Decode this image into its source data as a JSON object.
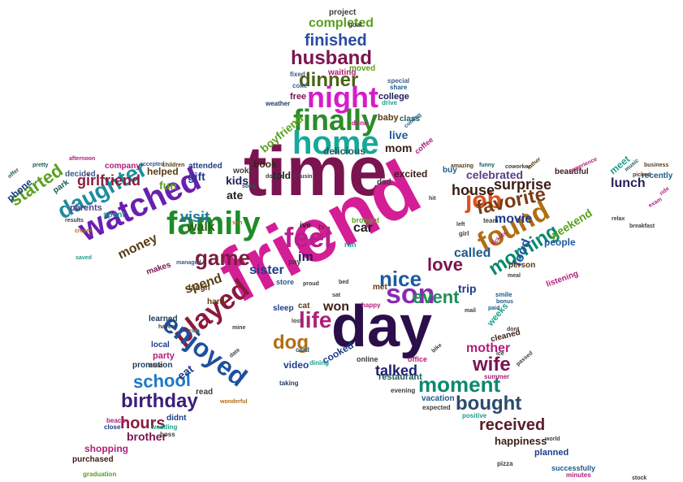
{
  "words": [
    {
      "text": "time",
      "color": "#7a1450"
    },
    {
      "text": "friend",
      "color": "#d41e96"
    },
    {
      "text": "day",
      "color": "#2b0f4a"
    },
    {
      "text": "family",
      "color": "#1e8c28"
    },
    {
      "text": "watched",
      "color": "#6a1fb0"
    },
    {
      "text": "home",
      "color": "#17a89a"
    },
    {
      "text": "finally",
      "color": "#2a8c28"
    },
    {
      "text": "night",
      "color": "#d41ec8"
    },
    {
      "text": "feel",
      "color": "#b81e8c"
    },
    {
      "text": "found",
      "color": "#b06e14"
    },
    {
      "text": "played",
      "color": "#8a1a3c"
    },
    {
      "text": "enjoyed",
      "color": "#1e50a0"
    },
    {
      "text": "son",
      "color": "#8a2ab0"
    },
    {
      "text": "job",
      "color": "#e0501e"
    },
    {
      "text": "daughter",
      "color": "#1e8ca0"
    },
    {
      "text": "game",
      "color": "#7a1e3c"
    },
    {
      "text": "dinner",
      "color": "#4a6414"
    },
    {
      "text": "husband",
      "color": "#7a1450"
    },
    {
      "text": "moment",
      "color": "#0a8a6e"
    },
    {
      "text": "nice",
      "color": "#1e5aa0"
    },
    {
      "text": "favorite",
      "color": "#7a3c14"
    },
    {
      "text": "morning",
      "color": "#0a8a6e"
    },
    {
      "text": "wife",
      "color": "#7a1450"
    },
    {
      "text": "bought",
      "color": "#2a4a6e"
    },
    {
      "text": "birthday",
      "color": "#3c1e78"
    },
    {
      "text": "life",
      "color": "#b01e78"
    },
    {
      "text": "dog",
      "color": "#b06e14"
    },
    {
      "text": "love",
      "color": "#7a1450"
    },
    {
      "text": "event",
      "color": "#1e8c5a"
    },
    {
      "text": "school",
      "color": "#1e78c8"
    },
    {
      "text": "received",
      "color": "#5a1e28"
    },
    {
      "text": "hours",
      "color": "#8a1e3c"
    },
    {
      "text": "started",
      "color": "#5aa01e"
    },
    {
      "text": "girlfriend",
      "color": "#8a1e3c"
    },
    {
      "text": "finished",
      "color": "#2a4aa0"
    },
    {
      "text": "completed",
      "color": "#5aa01e"
    },
    {
      "text": "visit",
      "color": "#1e78a0"
    },
    {
      "text": "walk",
      "color": "#2a6414"
    },
    {
      "text": "house",
      "color": "#3c1e14"
    },
    {
      "text": "called",
      "color": "#1e5a8a"
    },
    {
      "text": "movie",
      "color": "#1e3c8a"
    },
    {
      "text": "surprise",
      "color": "#3c1e14"
    },
    {
      "text": "lunch",
      "color": "#2a1e5a"
    },
    {
      "text": "talked",
      "color": "#1e1e6e"
    },
    {
      "text": "mother",
      "color": "#b01e78"
    },
    {
      "text": "sister",
      "color": "#1e3c8a"
    },
    {
      "text": "weekend",
      "color": "#5aa01e"
    },
    {
      "text": "celebrated",
      "color": "#5a3c8a"
    },
    {
      "text": "money",
      "color": "#5a3c14"
    },
    {
      "text": "food",
      "color": "#1e50a0"
    },
    {
      "text": "brother",
      "color": "#7a1450"
    },
    {
      "text": "happiness",
      "color": "#3c1e14"
    },
    {
      "text": "car",
      "color": "#1e1e1e"
    },
    {
      "text": "im",
      "color": "#1e1e5a"
    },
    {
      "text": "won",
      "color": "#3c1e14"
    },
    {
      "text": "trip",
      "color": "#1e3c8a"
    },
    {
      "text": "eat",
      "color": "#1e3c8a"
    },
    {
      "text": "fun",
      "color": "#5aa01e"
    },
    {
      "text": "gift",
      "color": "#1e3c8a"
    },
    {
      "text": "kids",
      "color": "#1e1e5a"
    },
    {
      "text": "ate",
      "color": "#1e1e1e"
    },
    {
      "text": "spend",
      "color": "#5a3c14"
    },
    {
      "text": "shopping",
      "color": "#b01e78"
    },
    {
      "text": "mom",
      "color": "#3c1e14"
    },
    {
      "text": "live",
      "color": "#1e5aa0"
    },
    {
      "text": "boyfriend",
      "color": "#5aa01e"
    },
    {
      "text": "book",
      "color": "#3c1e14"
    },
    {
      "text": "told",
      "color": "#1e1e1e"
    },
    {
      "text": "delicious",
      "color": "#1e5a5a"
    },
    {
      "text": "excited",
      "color": "#3c1e14"
    },
    {
      "text": "meet",
      "color": "#1ea08c"
    },
    {
      "text": "recently",
      "color": "#1e5a8a"
    },
    {
      "text": "beautiful",
      "color": "#3c1e14"
    },
    {
      "text": "people",
      "color": "#1e5aa0"
    },
    {
      "text": "party",
      "color": "#b01e78"
    },
    {
      "text": "video",
      "color": "#1e3c8a"
    },
    {
      "text": "cooked",
      "color": "#1e3c8a"
    },
    {
      "text": "planned",
      "color": "#1e3c8a"
    },
    {
      "text": "purchased",
      "color": "#3c1e14"
    },
    {
      "text": "met",
      "color": "#5a3c14"
    },
    {
      "text": "weeks",
      "color": "#1ea08c"
    },
    {
      "text": "helped",
      "color": "#5a3c14"
    },
    {
      "text": "parents",
      "color": "#5a3c8a"
    },
    {
      "text": "phone",
      "color": "#1e3c8a"
    },
    {
      "text": "college",
      "color": "#1e1e5a"
    },
    {
      "text": "baby",
      "color": "#5a3c14"
    },
    {
      "text": "class",
      "color": "#1e5a5a"
    },
    {
      "text": "project",
      "color": "#3c3c3c"
    },
    {
      "text": "moved",
      "color": "#5aa01e"
    },
    {
      "text": "free",
      "color": "#7a1450"
    },
    {
      "text": "restaurant",
      "color": "#1e5a5a"
    },
    {
      "text": "vacation",
      "color": "#1e5a8a"
    },
    {
      "text": "didnt",
      "color": "#1e3c8a"
    },
    {
      "text": "promotion",
      "color": "#1e3c5a"
    },
    {
      "text": "cleaned",
      "color": "#3c1e14"
    },
    {
      "text": "person",
      "color": "#5a3c14"
    },
    {
      "text": "laugh",
      "color": "#5a3c14"
    },
    {
      "text": "learned",
      "color": "#1e3c5a"
    },
    {
      "text": "hard",
      "color": "#5a3c14"
    },
    {
      "text": "sleep",
      "color": "#1e3c8a"
    },
    {
      "text": "cat",
      "color": "#5a3c14"
    },
    {
      "text": "waiting",
      "color": "#b01e78"
    },
    {
      "text": "decided",
      "color": "#3c5a8a"
    },
    {
      "text": "park",
      "color": "#1e5a5a"
    },
    {
      "text": "buy",
      "color": "#1e5a8a"
    },
    {
      "text": "ive",
      "color": "#1e1e1e"
    },
    {
      "text": "dad",
      "color": "#3c3c3c"
    },
    {
      "text": "successfully",
      "color": "#1e5a8a"
    },
    {
      "text": "spent",
      "color": "#1ea08c"
    },
    {
      "text": "makes",
      "color": "#7a1450"
    },
    {
      "text": "local",
      "color": "#1e3c8a"
    },
    {
      "text": "read",
      "color": "#3c3c3c"
    },
    {
      "text": "attended",
      "color": "#1e3c8a"
    },
    {
      "text": "company",
      "color": "#b01e78"
    },
    {
      "text": "woke",
      "color": "#3c3c3c"
    },
    {
      "text": "coffee",
      "color": "#b01e78"
    },
    {
      "text": "listening",
      "color": "#b01e78"
    },
    {
      "text": "happy",
      "color": "#b01e78"
    },
    {
      "text": "brought",
      "color": "#5aa01e"
    },
    {
      "text": "tv",
      "color": "#5a3c14"
    },
    {
      "text": "pay",
      "color": "#3c3c3c"
    },
    {
      "text": "store",
      "color": "#1e5a8a"
    },
    {
      "text": "run",
      "color": "#1ea08c"
    },
    {
      "text": "online",
      "color": "#3c3c3c"
    },
    {
      "text": "office",
      "color": "#b01e78"
    },
    {
      "text": "taking",
      "color": "#1e3c5a"
    },
    {
      "text": "dining",
      "color": "#1ea08c"
    },
    {
      "text": "card",
      "color": "#1e5a8a"
    },
    {
      "text": "smile",
      "color": "#1e5a8a"
    },
    {
      "text": "team",
      "color": "#3c3c3c"
    },
    {
      "text": "girl",
      "color": "#3c3c3c"
    },
    {
      "text": "pizza",
      "color": "#3c3c3c"
    },
    {
      "text": "summer",
      "color": "#b01e78"
    },
    {
      "text": "positive",
      "color": "#1ea08c"
    },
    {
      "text": "expected",
      "color": "#3c3c3c"
    },
    {
      "text": "evening",
      "color": "#3c3c3c"
    },
    {
      "text": "minutes",
      "color": "#b01e78"
    },
    {
      "text": "graduation",
      "color": "#5aa01e"
    },
    {
      "text": "wedding",
      "color": "#1ea08c"
    },
    {
      "text": "close",
      "color": "#1e3c8a"
    },
    {
      "text": "boss",
      "color": "#3c3c3c"
    },
    {
      "text": "beach",
      "color": "#b01e78"
    },
    {
      "text": "goal",
      "color": "#3c3c3c"
    },
    {
      "text": "share",
      "color": "#1e5a8a"
    },
    {
      "text": "drive",
      "color": "#1ea08c"
    },
    {
      "text": "special",
      "color": "#3c5a8a"
    },
    {
      "text": "fixed",
      "color": "#3c5a8a"
    },
    {
      "text": "coke",
      "color": "#3c5a8a"
    },
    {
      "text": "weather",
      "color": "#1e3c5a"
    },
    {
      "text": "drink",
      "color": "#b01e78"
    },
    {
      "text": "coming",
      "color": "#1e5a8a"
    },
    {
      "text": "afternoon",
      "color": "#b01e78"
    },
    {
      "text": "pretty",
      "color": "#1e5a5a"
    },
    {
      "text": "offer",
      "color": "#1e5a5a"
    },
    {
      "text": "accepted",
      "color": "#3c5a8a"
    },
    {
      "text": "children",
      "color": "#5a3c14"
    },
    {
      "text": "song",
      "color": "#1e5a5a"
    },
    {
      "text": "dollars",
      "color": "#3c3c3c"
    },
    {
      "text": "cousin",
      "color": "#3c3c3c"
    },
    {
      "text": "amazing",
      "color": "#5a3c14"
    },
    {
      "text": "funny",
      "color": "#1e5a5a"
    },
    {
      "text": "coworker",
      "color": "#3c3c3c"
    },
    {
      "text": "father",
      "color": "#5a3c14"
    },
    {
      "text": "experience",
      "color": "#b01e78"
    },
    {
      "text": "music",
      "color": "#1e5a5a"
    },
    {
      "text": "business",
      "color": "#5a3c14"
    },
    {
      "text": "picked",
      "color": "#5a3c14"
    },
    {
      "text": "ride",
      "color": "#b01e78"
    },
    {
      "text": "exam",
      "color": "#b01e78"
    },
    {
      "text": "relax",
      "color": "#3c3c3c"
    },
    {
      "text": "breakfast",
      "color": "#3c3c3c"
    },
    {
      "text": "hit",
      "color": "#3c3c3c"
    },
    {
      "text": "left",
      "color": "#3c3c3c"
    },
    {
      "text": "tickets",
      "color": "#b01e78"
    },
    {
      "text": "meal",
      "color": "#3c3c3c"
    },
    {
      "text": "bonus",
      "color": "#1e5a8a"
    },
    {
      "text": "paid",
      "color": "#1e5a8a"
    },
    {
      "text": "passed",
      "color": "#3c3c3c"
    },
    {
      "text": "dont",
      "color": "#3c3c3c"
    },
    {
      "text": "world",
      "color": "#3c3c3c"
    },
    {
      "text": "havent",
      "color": "#3c3c3c"
    },
    {
      "text": "child",
      "color": "#3c3c3c"
    },
    {
      "text": "cream",
      "color": "#b06e14"
    },
    {
      "text": "saved",
      "color": "#1ea08c"
    },
    {
      "text": "managed",
      "color": "#3c5a8a"
    },
    {
      "text": "rain",
      "color": "#1ea08c"
    },
    {
      "text": "mine",
      "color": "#3c3c3c"
    },
    {
      "text": "date",
      "color": "#3c3c3c"
    },
    {
      "text": "lost",
      "color": "#3c3c3c"
    },
    {
      "text": "bike",
      "color": "#3c3c3c"
    },
    {
      "text": "wonderful",
      "color": "#b06e14"
    },
    {
      "text": "results",
      "color": "#3c3c3c"
    },
    {
      "text": "mail",
      "color": "#3c3c3c"
    },
    {
      "text": "proud",
      "color": "#3c3c3c"
    },
    {
      "text": "bed",
      "color": "#3c3c3c"
    },
    {
      "text": "sat",
      "color": "#3c3c3c"
    },
    {
      "text": "ice",
      "color": "#3c3c3c"
    },
    {
      "text": "sun",
      "color": "#b06e14"
    },
    {
      "text": "stock",
      "color": "#3c3c3c"
    }
  ]
}
